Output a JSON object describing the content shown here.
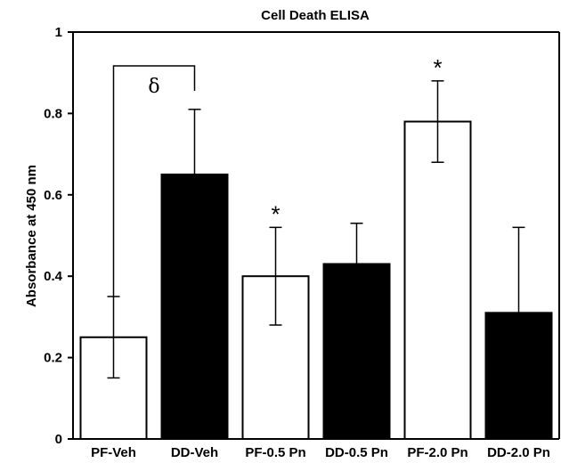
{
  "chart_data": {
    "type": "bar",
    "title": "Cell Death ELISA",
    "xlabel": "",
    "ylabel": "Absorbance at 450 nm",
    "ylim": [
      0,
      1
    ],
    "yticks": [
      "0",
      "0.2",
      "0.4",
      "0.6",
      "0.8",
      "1"
    ],
    "categories": [
      "PF-Veh",
      "DD-Veh",
      "PF-0.5 Pn",
      "DD-0.5 Pn",
      "PF-2.0 Pn",
      "DD-2.0 Pn"
    ],
    "values": [
      0.25,
      0.65,
      0.4,
      0.43,
      0.78,
      0.31
    ],
    "error_high": [
      0.35,
      0.81,
      0.52,
      0.53,
      0.88,
      0.52
    ],
    "error_low": [
      0.15,
      null,
      0.28,
      null,
      0.68,
      null
    ],
    "bar_fill": [
      "#ffffff",
      "#000000",
      "#ffffff",
      "#000000",
      "#ffffff",
      "#000000"
    ],
    "grid": false,
    "annotations": [
      {
        "text": "*",
        "category": "PF-0.5 Pn"
      },
      {
        "text": "*",
        "category": "PF-2.0 Pn"
      },
      {
        "text": "δ",
        "bracket": [
          "PF-Veh",
          "DD-Veh"
        ]
      }
    ]
  }
}
